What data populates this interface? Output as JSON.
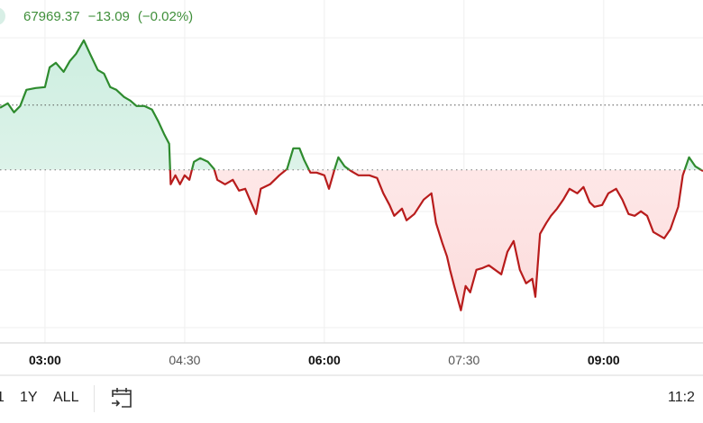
{
  "header": {
    "price": "67969.37",
    "change": "−13.09",
    "change_pct": "(−0.02%)",
    "accent_up": "#2e8b2e",
    "accent_down": "#b81c1c"
  },
  "toolbar": {
    "ranges": [
      "1",
      "1Y",
      "ALL"
    ],
    "calendar_icon": "calendar-arrow-icon",
    "time": "11:2"
  },
  "chart_data": {
    "type": "line",
    "x_ticks": [
      {
        "label": "03:00",
        "major": true
      },
      {
        "label": "04:30",
        "major": false
      },
      {
        "label": "06:00",
        "major": true
      },
      {
        "label": "07:30",
        "major": false
      },
      {
        "label": "09:00",
        "major": true
      }
    ],
    "xlim": [
      "02:31",
      "10:04"
    ],
    "ylim": [
      66070,
      69870
    ],
    "baseline": 67982.46,
    "reference_line": 68702,
    "grid": true,
    "colors": {
      "above": "#2e8b2e",
      "below": "#b81c1c",
      "fill_above": "#dff2ea",
      "fill_below": "#fde3e3"
    },
    "points": [
      [
        "02:31",
        68672
      ],
      [
        "02:36",
        68722
      ],
      [
        "02:40",
        68622
      ],
      [
        "02:44",
        68692
      ],
      [
        "02:48",
        68872
      ],
      [
        "02:54",
        68892
      ],
      [
        "03:00",
        68902
      ],
      [
        "03:03",
        69122
      ],
      [
        "03:07",
        69172
      ],
      [
        "03:12",
        69072
      ],
      [
        "03:16",
        69192
      ],
      [
        "03:20",
        69272
      ],
      [
        "03:25",
        69422
      ],
      [
        "03:29",
        69272
      ],
      [
        "03:34",
        69092
      ],
      [
        "03:38",
        69052
      ],
      [
        "03:42",
        68902
      ],
      [
        "03:46",
        68872
      ],
      [
        "03:51",
        68792
      ],
      [
        "03:55",
        68752
      ],
      [
        "03:59",
        68692
      ],
      [
        "04:04",
        68692
      ],
      [
        "04:09",
        68652
      ],
      [
        "04:13",
        68522
      ],
      [
        "04:17",
        68372
      ],
      [
        "04:20",
        68272
      ],
      [
        "04:21",
        67822
      ],
      [
        "04:24",
        67922
      ],
      [
        "04:27",
        67822
      ],
      [
        "04:30",
        67922
      ],
      [
        "04:33",
        67872
      ],
      [
        "04:36",
        68072
      ],
      [
        "04:40",
        68112
      ],
      [
        "04:45",
        68072
      ],
      [
        "04:49",
        67992
      ],
      [
        "04:51",
        67872
      ],
      [
        "04:56",
        67822
      ],
      [
        "05:01",
        67872
      ],
      [
        "05:05",
        67752
      ],
      [
        "05:09",
        67772
      ],
      [
        "05:12",
        67652
      ],
      [
        "05:16",
        67492
      ],
      [
        "05:19",
        67772
      ],
      [
        "05:25",
        67822
      ],
      [
        "05:31",
        67922
      ],
      [
        "05:36",
        67992
      ],
      [
        "05:40",
        68222
      ],
      [
        "05:44",
        68222
      ],
      [
        "05:47",
        68092
      ],
      [
        "05:51",
        67952
      ],
      [
        "05:55",
        67952
      ],
      [
        "06:00",
        67922
      ],
      [
        "06:03",
        67772
      ],
      [
        "06:07",
        68012
      ],
      [
        "06:09",
        68122
      ],
      [
        "06:13",
        68022
      ],
      [
        "06:17",
        67972
      ],
      [
        "06:22",
        67922
      ],
      [
        "06:29",
        67922
      ],
      [
        "06:34",
        67892
      ],
      [
        "06:38",
        67722
      ],
      [
        "06:42",
        67592
      ],
      [
        "06:45",
        67472
      ],
      [
        "06:50",
        67552
      ],
      [
        "06:53",
        67422
      ],
      [
        "06:58",
        67492
      ],
      [
        "07:04",
        67652
      ],
      [
        "07:09",
        67722
      ],
      [
        "07:12",
        67392
      ],
      [
        "07:16",
        67172
      ],
      [
        "07:19",
        67022
      ],
      [
        "07:21",
        66872
      ],
      [
        "07:24",
        66672
      ],
      [
        "07:28",
        66422
      ],
      [
        "07:31",
        66692
      ],
      [
        "07:34",
        66622
      ],
      [
        "07:38",
        66872
      ],
      [
        "07:42",
        66892
      ],
      [
        "07:46",
        66922
      ],
      [
        "07:50",
        66872
      ],
      [
        "07:54",
        66822
      ],
      [
        "07:58",
        67072
      ],
      [
        "08:02",
        67192
      ],
      [
        "08:06",
        66872
      ],
      [
        "08:10",
        66722
      ],
      [
        "08:14",
        66772
      ],
      [
        "08:16",
        66572
      ],
      [
        "08:19",
        67272
      ],
      [
        "08:23",
        67392
      ],
      [
        "08:26",
        67472
      ],
      [
        "08:30",
        67552
      ],
      [
        "08:34",
        67652
      ],
      [
        "08:38",
        67772
      ],
      [
        "08:43",
        67722
      ],
      [
        "08:47",
        67792
      ],
      [
        "08:51",
        67622
      ],
      [
        "08:54",
        67572
      ],
      [
        "08:59",
        67592
      ],
      [
        "09:03",
        67722
      ],
      [
        "09:08",
        67772
      ],
      [
        "09:12",
        67652
      ],
      [
        "09:16",
        67492
      ],
      [
        "09:20",
        67472
      ],
      [
        "09:24",
        67522
      ],
      [
        "09:28",
        67472
      ],
      [
        "09:32",
        67292
      ],
      [
        "09:36",
        67252
      ],
      [
        "09:39",
        67222
      ],
      [
        "09:43",
        67322
      ],
      [
        "09:48",
        67572
      ],
      [
        "09:51",
        67922
      ],
      [
        "09:55",
        68122
      ],
      [
        "09:59",
        68022
      ],
      [
        "10:04",
        67969.37
      ]
    ]
  }
}
